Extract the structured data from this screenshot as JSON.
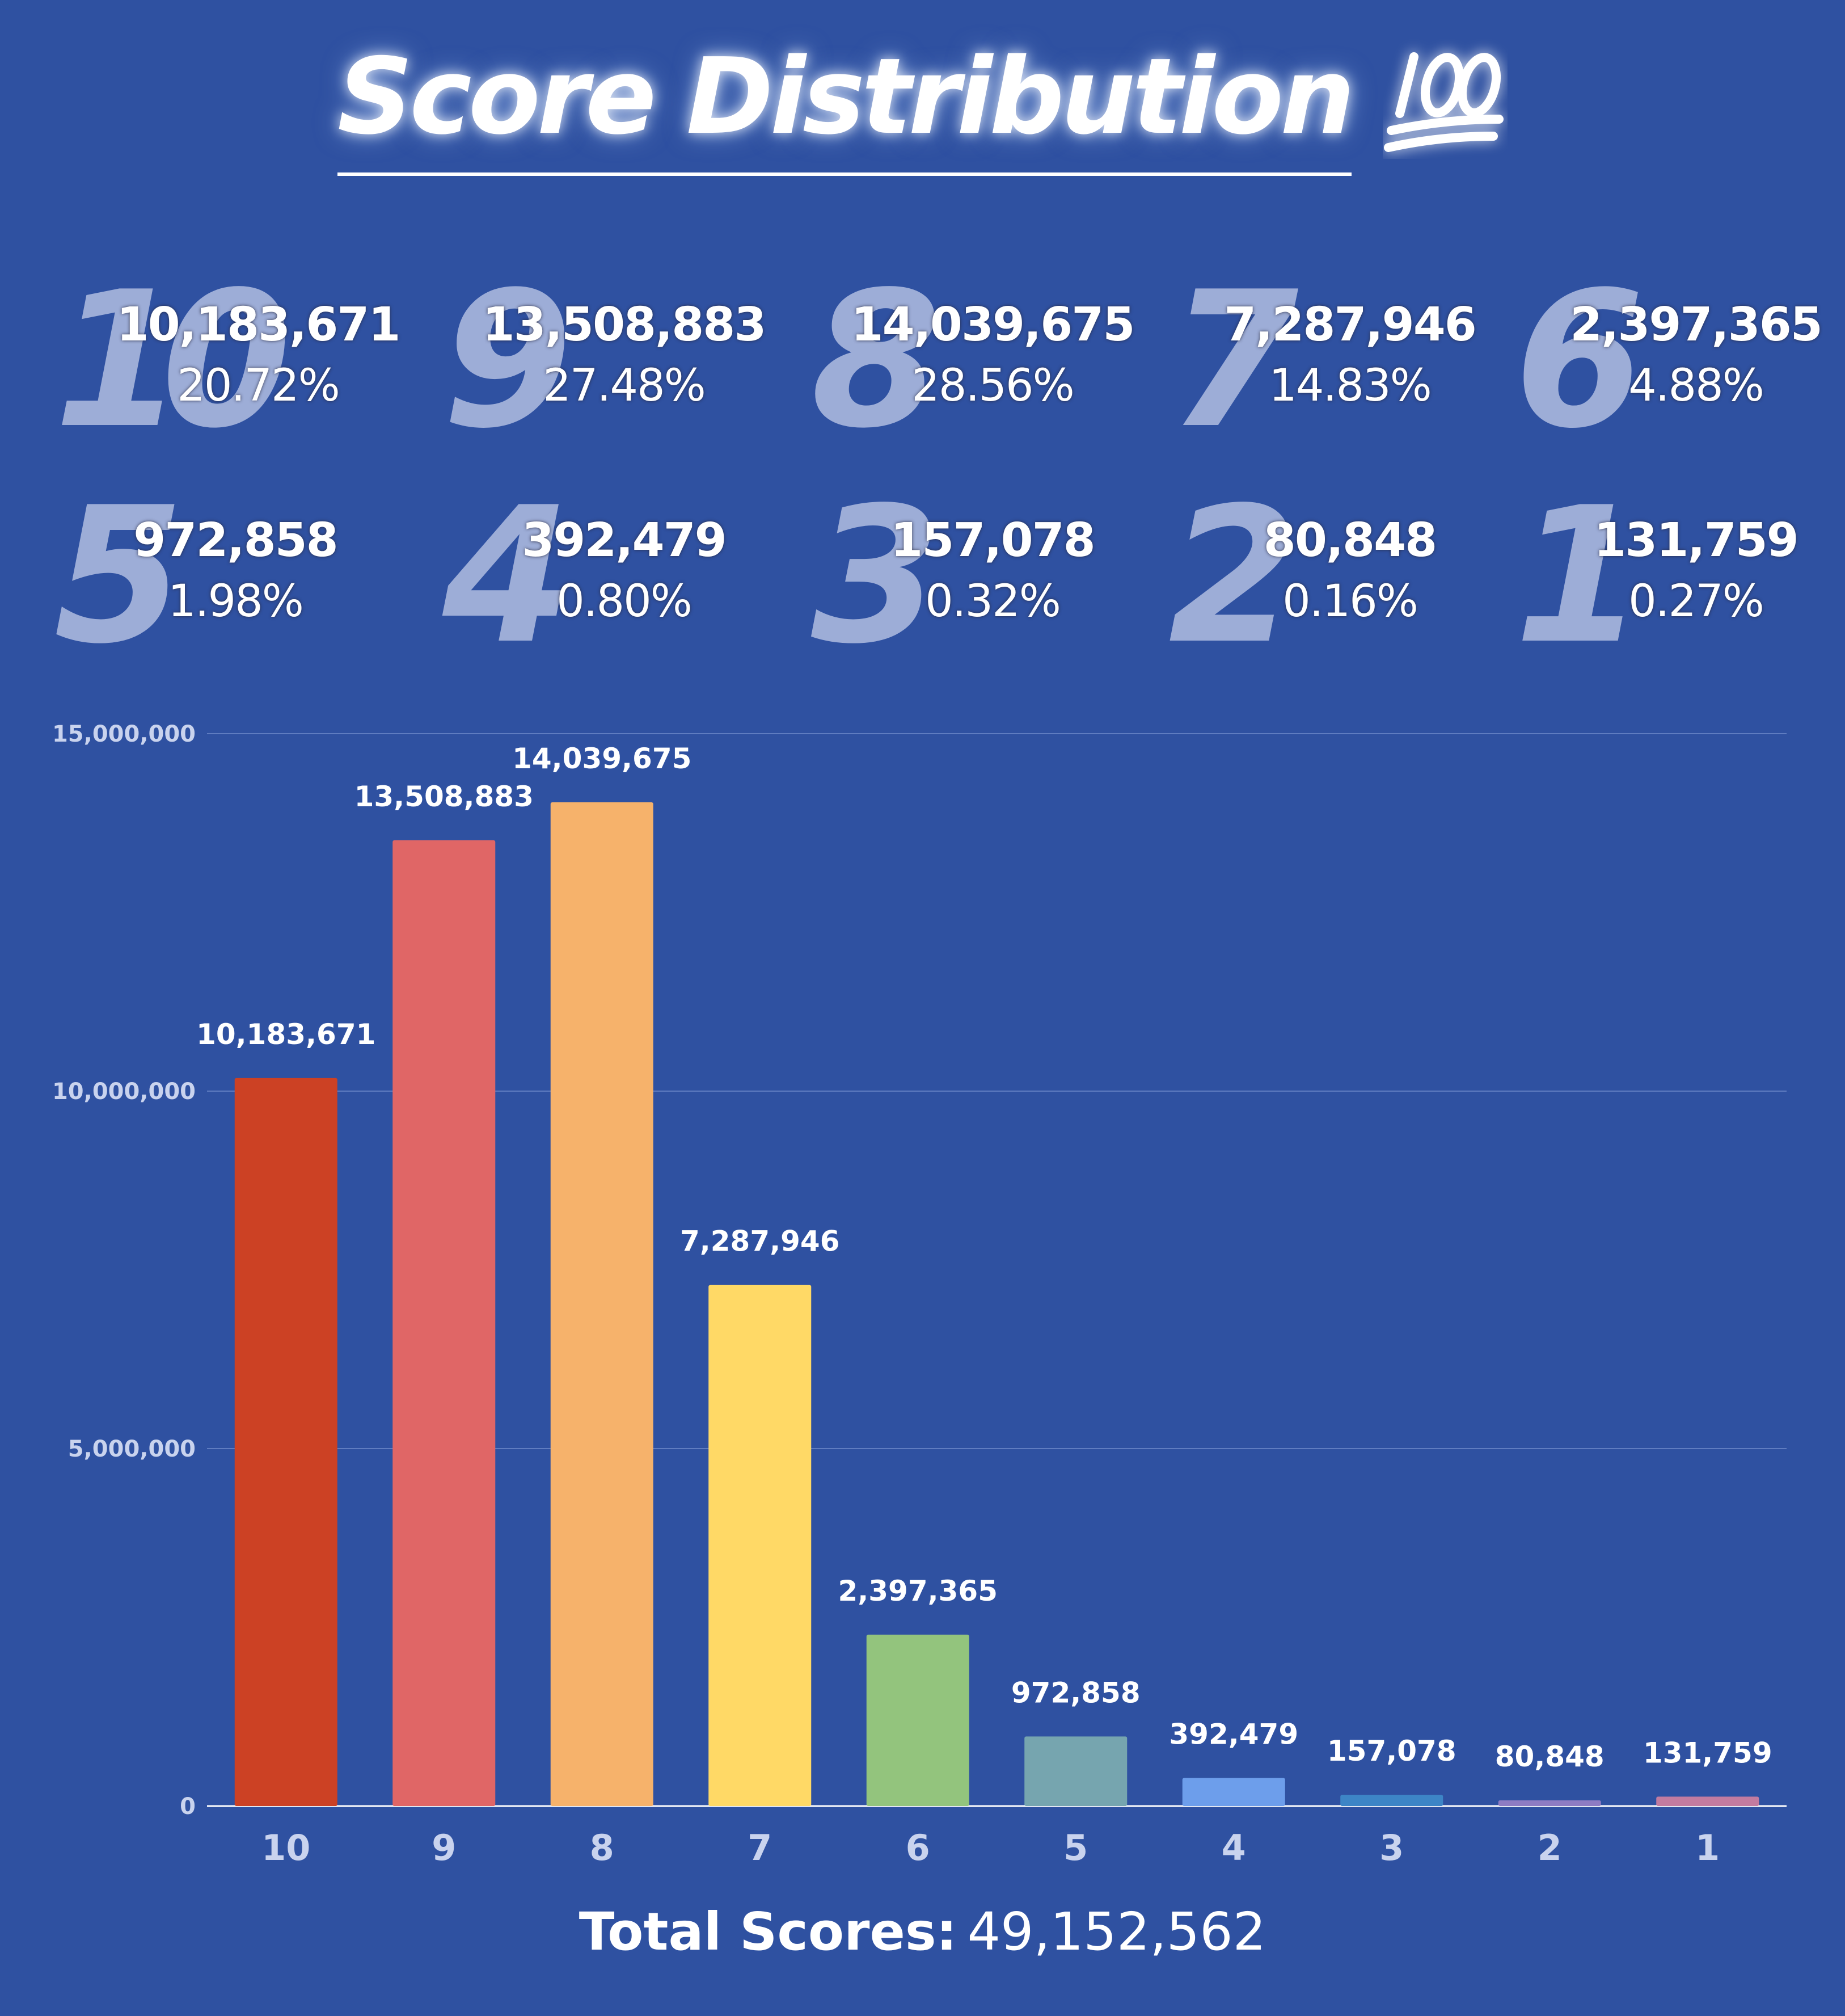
{
  "title": "Score Distribution",
  "title_icon": "hundred-points-icon",
  "colors": {
    "background": "#2f51a1",
    "grid": "#5f7cc0",
    "axis_text": "#c9d3ee",
    "stat_digit": "#a9b7dd"
  },
  "stats": [
    {
      "score": "10",
      "count": "10,183,671",
      "percent": "20.72%"
    },
    {
      "score": "9",
      "count": "13,508,883",
      "percent": "27.48%"
    },
    {
      "score": "8",
      "count": "14,039,675",
      "percent": "28.56%"
    },
    {
      "score": "7",
      "count": "7,287,946",
      "percent": "14.83%"
    },
    {
      "score": "6",
      "count": "2,397,365",
      "percent": "4.88%"
    },
    {
      "score": "5",
      "count": "972,858",
      "percent": "1.98%"
    },
    {
      "score": "4",
      "count": "392,479",
      "percent": "0.80%"
    },
    {
      "score": "3",
      "count": "157,078",
      "percent": "0.32%"
    },
    {
      "score": "2",
      "count": "80,848",
      "percent": "0.16%"
    },
    {
      "score": "1",
      "count": "131,759",
      "percent": "0.27%"
    }
  ],
  "chart_data": {
    "type": "bar",
    "title": "Score Distribution",
    "xlabel": "",
    "ylabel": "",
    "categories": [
      "10",
      "9",
      "8",
      "7",
      "6",
      "5",
      "4",
      "3",
      "2",
      "1"
    ],
    "values": [
      10183671,
      13508883,
      14039675,
      7287946,
      2397365,
      972858,
      392479,
      157078,
      80848,
      131759
    ],
    "data_labels": [
      "10,183,671",
      "13,508,883",
      "14,039,675",
      "7,287,946",
      "2,397,365",
      "972,858",
      "392,479",
      "157,078",
      "80,848",
      "131,759"
    ],
    "bar_colors": [
      "#cc4124",
      "#e06666",
      "#f6b26b",
      "#ffd966",
      "#93c47d",
      "#76a5af",
      "#6d9eeb",
      "#3d85c6",
      "#8e7cc3",
      "#c27ba0"
    ],
    "ylim": [
      0,
      15000000
    ],
    "yticks": [
      0,
      5000000,
      10000000,
      15000000
    ],
    "ytick_labels": [
      "0",
      "5,000,000",
      "10,000,000",
      "15,000,000"
    ],
    "grid": true,
    "legend": "none"
  },
  "total": {
    "label": "Total Scores:",
    "value": "49,152,562"
  }
}
